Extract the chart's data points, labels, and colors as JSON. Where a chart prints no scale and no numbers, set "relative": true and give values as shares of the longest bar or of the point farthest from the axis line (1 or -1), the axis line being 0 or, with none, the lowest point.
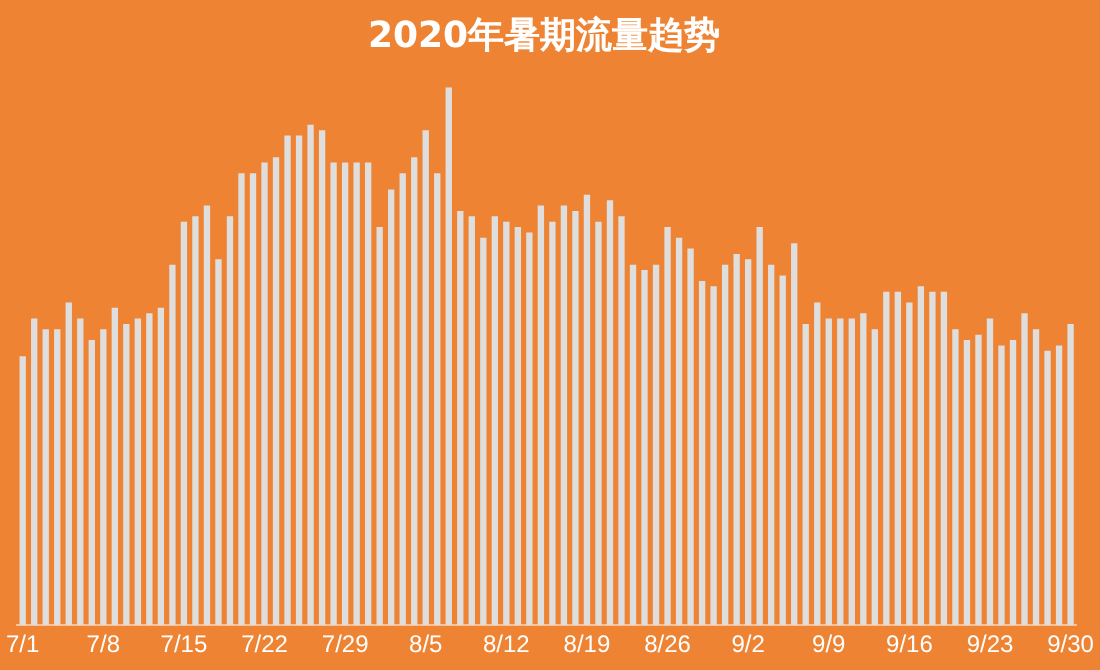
{
  "chart_data": {
    "type": "bar",
    "title": "2020年暑期流量趋势",
    "relative": true,
    "color": "#dedede",
    "categories": [
      "7/1",
      null,
      null,
      null,
      null,
      null,
      null,
      "7/8",
      null,
      null,
      null,
      null,
      null,
      null,
      "7/15",
      null,
      null,
      null,
      null,
      null,
      null,
      "7/22",
      null,
      null,
      null,
      null,
      null,
      null,
      "7/29",
      null,
      null,
      null,
      null,
      null,
      null,
      "8/5",
      null,
      null,
      null,
      null,
      null,
      null,
      "8/12",
      null,
      null,
      null,
      null,
      null,
      null,
      "8/19",
      null,
      null,
      null,
      null,
      null,
      null,
      "8/26",
      null,
      null,
      null,
      null,
      null,
      null,
      "9/2",
      null,
      null,
      null,
      null,
      null,
      null,
      "9/9",
      null,
      null,
      null,
      null,
      null,
      null,
      "9/16",
      null,
      null,
      null,
      null,
      null,
      null,
      "9/23",
      null,
      null,
      null,
      null,
      null,
      null,
      "9/30"
    ],
    "values": [
      0.5,
      0.57,
      0.55,
      0.55,
      0.6,
      0.57,
      0.53,
      0.55,
      0.59,
      0.56,
      0.57,
      0.58,
      0.59,
      0.67,
      0.75,
      0.76,
      0.78,
      0.68,
      0.76,
      0.84,
      0.84,
      0.86,
      0.87,
      0.91,
      0.91,
      0.93,
      0.92,
      0.86,
      0.86,
      0.86,
      0.86,
      0.74,
      0.81,
      0.84,
      0.87,
      0.92,
      0.84,
      1,
      0.77,
      0.76,
      0.72,
      0.76,
      0.75,
      0.74,
      0.73,
      0.78,
      0.75,
      0.78,
      0.77,
      0.8,
      0.75,
      0.79,
      0.76,
      0.67,
      0.66,
      0.67,
      0.74,
      0.72,
      0.7,
      0.64,
      0.63,
      0.67,
      0.69,
      0.68,
      0.74,
      0.67,
      0.65,
      0.71,
      0.56,
      0.6,
      0.57,
      0.57,
      0.57,
      0.58,
      0.55,
      0.62,
      0.62,
      0.6,
      0.63,
      0.62,
      0.62,
      0.55,
      0.53,
      0.54,
      0.57,
      0.52,
      0.53,
      0.58,
      0.55,
      0.51,
      0.52,
      0.56
    ]
  }
}
